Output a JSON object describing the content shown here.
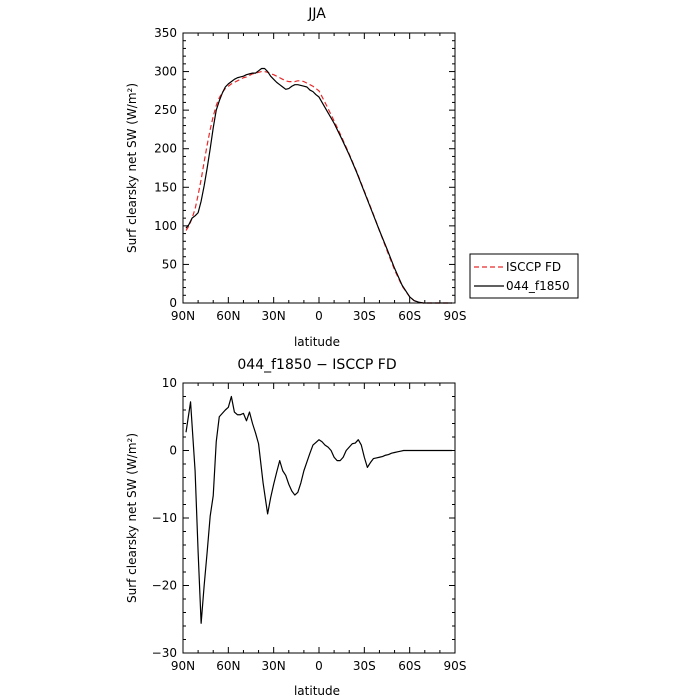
{
  "chart_data": [
    {
      "type": "line",
      "title": "JJA",
      "xlabel": "latitude",
      "ylabel": "Surf clearsky net SW (W/m²)",
      "xlim": [
        90,
        -90
      ],
      "ylim": [
        0,
        350
      ],
      "xticks": [
        90,
        60,
        30,
        0,
        -30,
        -60,
        -90
      ],
      "xtick_labels": [
        "90N",
        "60N",
        "30N",
        "0",
        "30S",
        "60S",
        "90S"
      ],
      "yticks": [
        0,
        50,
        100,
        150,
        200,
        250,
        300,
        350
      ],
      "ytick_labels": [
        "0",
        "50",
        "100",
        "150",
        "200",
        "250",
        "300",
        "350"
      ],
      "legend_position": "outside-right",
      "series": [
        {
          "name": "ISCCP FD",
          "color": "#e8292b",
          "dash": "dashed",
          "x": [
            88,
            86,
            84,
            82,
            80,
            78,
            76,
            74,
            72,
            70,
            68,
            66,
            64,
            62,
            60,
            58,
            56,
            54,
            52,
            50,
            48,
            46,
            44,
            42,
            40,
            38,
            36,
            34,
            32,
            30,
            28,
            26,
            24,
            22,
            20,
            18,
            16,
            14,
            12,
            10,
            8,
            6,
            4,
            2,
            0,
            -5,
            -10,
            -15,
            -20,
            -25,
            -30,
            -35,
            -40,
            -45,
            -50,
            -55,
            -60,
            -63,
            -66,
            -69,
            -72,
            -75,
            -78,
            -80,
            -82,
            -84,
            -86,
            -88
          ],
          "y": [
            94,
            100,
            110,
            122,
            140,
            160,
            183,
            205,
            225,
            242,
            256,
            266,
            273,
            278,
            281,
            284,
            286,
            288,
            290,
            292,
            293,
            295,
            297,
            298,
            299,
            300,
            300,
            299,
            297,
            296,
            294,
            292,
            290,
            288,
            287,
            287,
            287,
            288,
            288,
            287,
            285,
            283,
            281,
            278,
            275,
            256,
            236,
            215,
            193,
            170,
            145,
            120,
            94,
            68,
            43,
            22,
            8,
            3,
            1,
            0,
            0,
            0,
            0,
            0,
            0,
            0,
            0,
            0
          ]
        },
        {
          "name": "044_f1850",
          "color": "#000000",
          "dash": "solid",
          "x": [
            88,
            86,
            84,
            82,
            80,
            78,
            76,
            74,
            72,
            70,
            68,
            66,
            64,
            62,
            60,
            58,
            56,
            54,
            52,
            50,
            48,
            46,
            44,
            42,
            40,
            38,
            36,
            34,
            32,
            30,
            28,
            26,
            24,
            22,
            20,
            18,
            16,
            14,
            12,
            10,
            8,
            6,
            4,
            2,
            0,
            -5,
            -10,
            -15,
            -20,
            -25,
            -30,
            -35,
            -40,
            -45,
            -50,
            -55,
            -60,
            -63,
            -66,
            -69,
            -72,
            -75,
            -78,
            -80,
            -82,
            -84,
            -86,
            -88
          ],
          "y": [
            97,
            102,
            110,
            113,
            117,
            132,
            152,
            175,
            200,
            227,
            250,
            262,
            272,
            280,
            284,
            287,
            290,
            292,
            293,
            294,
            296,
            297,
            298,
            298,
            301,
            304,
            304,
            300,
            294,
            290,
            286,
            283,
            280,
            277,
            278,
            281,
            283,
            283,
            282,
            281,
            280,
            276,
            274,
            270,
            267,
            250,
            233,
            213,
            192,
            169,
            144,
            119,
            94,
            70,
            45,
            23,
            8,
            3,
            1,
            0,
            0,
            0,
            0,
            0,
            0,
            0,
            0,
            0
          ]
        }
      ]
    },
    {
      "type": "line",
      "title": "044_f1850 − ISCCP FD",
      "xlabel": "latitude",
      "ylabel": "Surf clearsky net SW (W/m²)",
      "xlim": [
        90,
        -90
      ],
      "ylim": [
        -30,
        10
      ],
      "xticks": [
        90,
        60,
        30,
        0,
        -30,
        -60,
        -90
      ],
      "xtick_labels": [
        "90N",
        "60N",
        "30N",
        "0",
        "30S",
        "60S",
        "90S"
      ],
      "yticks": [
        -30,
        -20,
        -10,
        0,
        10
      ],
      "ytick_labels": [
        "−30",
        "−20",
        "−10",
        "0",
        "10"
      ],
      "series": [
        {
          "name": "",
          "color": "#000000",
          "dash": "solid",
          "x": [
            88,
            85,
            82,
            80,
            78,
            76,
            74,
            72,
            70,
            68,
            66,
            64,
            62,
            60,
            58,
            56,
            54,
            52,
            50,
            48,
            46,
            44,
            42,
            40,
            37,
            34,
            32,
            30,
            28,
            26,
            24,
            22,
            20,
            18,
            16,
            14,
            12,
            10,
            8,
            6,
            4,
            2,
            0,
            -2,
            -4,
            -6,
            -8,
            -10,
            -12,
            -14,
            -16,
            -18,
            -20,
            -22,
            -24,
            -26,
            -28,
            -30,
            -32,
            -34,
            -36,
            -38,
            -40,
            -42,
            -44,
            -46,
            -48,
            -50,
            -52,
            -54,
            -56,
            -58,
            -60,
            -62,
            -64,
            -66,
            -68,
            -70,
            -72,
            -74,
            -76,
            -78,
            -80,
            -82,
            -84,
            -86,
            -88
          ],
          "y": [
            2.7,
            7.2,
            -3,
            -15,
            -25.6,
            -20,
            -15,
            -9.7,
            -6.7,
            1.3,
            5,
            5.5,
            6,
            6.4,
            8,
            5.7,
            5.3,
            5.3,
            5.5,
            4.4,
            5.7,
            4,
            2.6,
            1,
            -4.8,
            -9.4,
            -7,
            -5,
            -3.2,
            -1.5,
            -3,
            -3.7,
            -5,
            -6,
            -6.6,
            -6.2,
            -4.8,
            -3,
            -1.7,
            -0.4,
            0.8,
            1.2,
            1.6,
            1.3,
            0.8,
            0.5,
            0,
            -1,
            -1.5,
            -1.5,
            -1,
            0,
            0.5,
            1,
            1.1,
            1.6,
            0.8,
            -1,
            -2.5,
            -1.8,
            -1.2,
            -1.1,
            -1,
            -0.9,
            -0.7,
            -0.6,
            -0.4,
            -0.3,
            -0.2,
            -0.1,
            0,
            0,
            0,
            0,
            0,
            0,
            0,
            0,
            0,
            0,
            0,
            0,
            0,
            0,
            0,
            0,
            0
          ]
        }
      ]
    }
  ]
}
